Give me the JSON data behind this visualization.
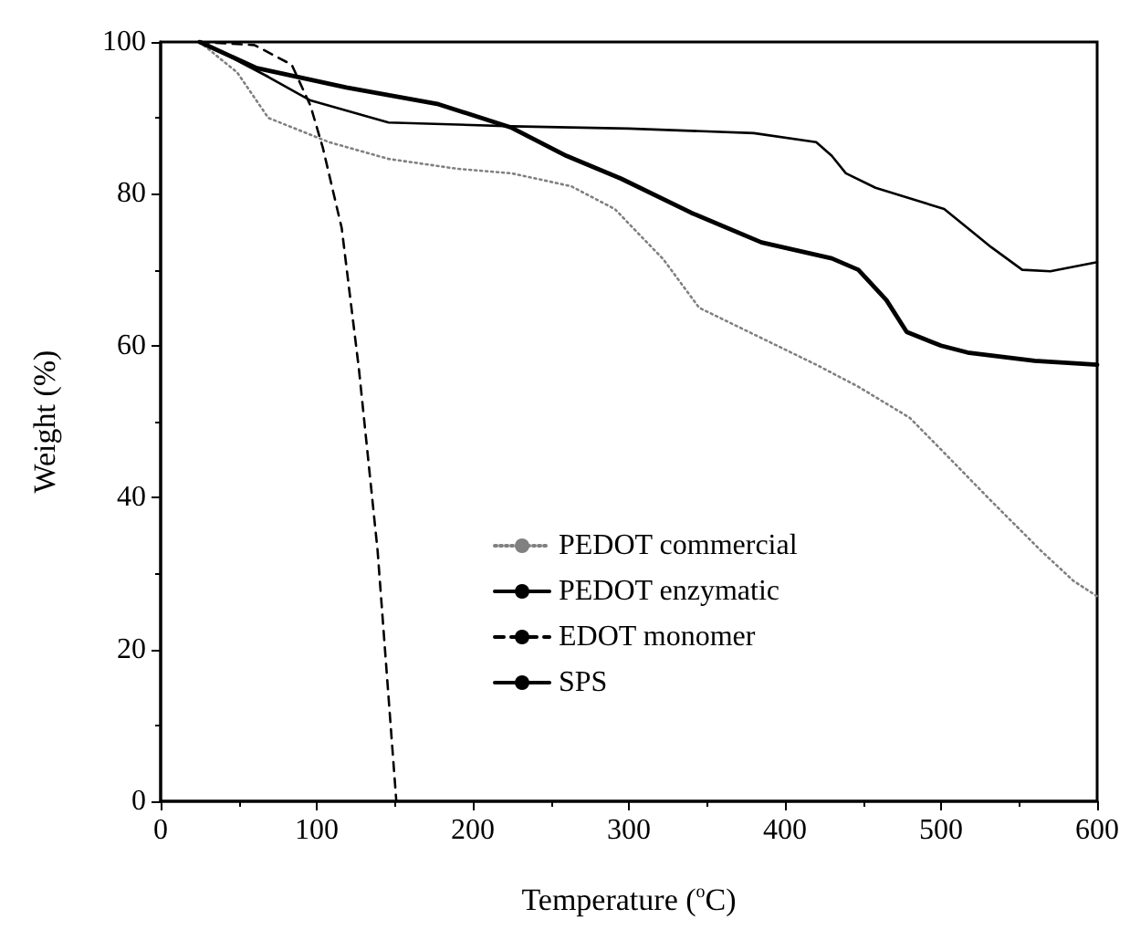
{
  "chart_data": {
    "type": "line",
    "xlabel": "Temperature ($^{o}$C)",
    "ylabel": "Weight (%)",
    "xlim": [
      0,
      600
    ],
    "ylim": [
      0,
      100
    ],
    "xticks": [
      0,
      100,
      200,
      300,
      400,
      500,
      600
    ],
    "yticks": [
      0,
      20,
      40,
      60,
      80,
      100
    ],
    "grid": false,
    "legend": "bottom right",
    "marker": "none",
    "series": [
      {
        "name": "PEDOT commercial",
        "color": "#808080",
        "line_style": "dotted",
        "x": [
          25,
          49,
          69,
          108,
          146,
          190,
          225,
          263,
          291,
          305,
          322,
          345,
          385,
          420,
          447,
          480,
          502,
          530,
          564,
          585,
          600
        ],
        "values": [
          100,
          96,
          90,
          86.8,
          84.6,
          83.3,
          82.7,
          81,
          78,
          75,
          71.4,
          65,
          61,
          57.5,
          54.6,
          50.5,
          45.9,
          40,
          33,
          29,
          27
        ]
      },
      {
        "name": "PEDOT enzymatic",
        "color": "#000000",
        "line_style": "solid",
        "x": [
          25,
          61,
          119,
          178,
          225,
          260,
          295,
          340,
          385,
          430,
          447,
          465,
          478,
          500,
          517,
          560,
          600
        ],
        "values": [
          100,
          96.6,
          94,
          91.8,
          88.7,
          85,
          82,
          77.5,
          73.6,
          71.5,
          70,
          66,
          61.8,
          60,
          59.1,
          58,
          57.5
        ]
      },
      {
        "name": "EDOT monomer",
        "color": "#000000",
        "line_style": "dashed",
        "x": [
          25,
          60,
          84,
          96,
          104,
          116,
          127,
          139,
          151
        ],
        "values": [
          100,
          99.6,
          97,
          91.6,
          86,
          75.5,
          57,
          33,
          0
        ]
      },
      {
        "name": "SPS",
        "color": "#000000",
        "line_style": "solid",
        "x": [
          25,
          45,
          69,
          96,
          146,
          225,
          300,
          380,
          420,
          430,
          439,
          458,
          502,
          532,
          552,
          570,
          600
        ],
        "values": [
          100,
          98,
          95.4,
          92.3,
          89.4,
          88.9,
          88.6,
          88,
          86.8,
          85,
          82.7,
          80.8,
          78,
          73,
          70,
          69.8,
          71
        ]
      }
    ]
  }
}
